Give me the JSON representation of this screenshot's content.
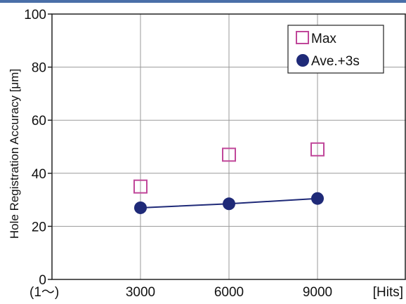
{
  "chart_data": {
    "type": "scatter",
    "title": "",
    "xlabel": "",
    "ylabel": "Hole Registration Accuracy [μm]",
    "x_unit_label": "[Hits]",
    "x_origin_label": "(1～)",
    "x": [
      3000,
      6000,
      9000
    ],
    "xticks": [
      "3000",
      "6000",
      "9000"
    ],
    "xlim": [
      0,
      12000
    ],
    "ylim": [
      0,
      100
    ],
    "yticks": [
      "0",
      "20",
      "40",
      "60",
      "80",
      "100"
    ],
    "grid": true,
    "legend_position": "top-right",
    "series": [
      {
        "name": "Max",
        "marker": "open-square",
        "color": "#c0479a",
        "line": false,
        "values": [
          35,
          47,
          49
        ]
      },
      {
        "name": "Ave.+3s",
        "marker": "filled-circle",
        "color": "#1f2a78",
        "line": true,
        "values": [
          27,
          28.5,
          30.5
        ]
      }
    ]
  }
}
